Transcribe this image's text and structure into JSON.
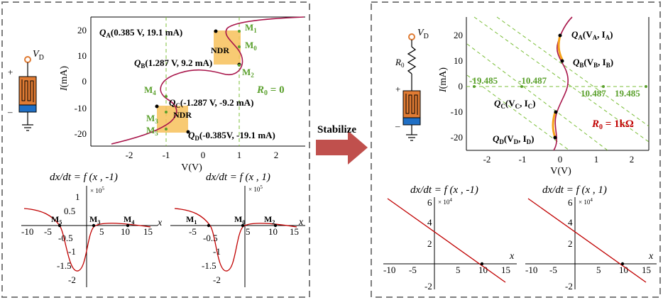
{
  "colors": {
    "curve": "#a8154a",
    "ndr_fill": "#f7c15a",
    "green": "#5aa02c",
    "red": "#c00000",
    "arrow": "#c0504d",
    "memristor_body": "#e07b33",
    "memristor_base": "#1f6fc5",
    "frame": "#7f7f7f"
  },
  "left_panel": {
    "circuit": {
      "vd_label": "V",
      "vd_sub": "D",
      "plus": "+",
      "minus": "–"
    },
    "iv_plot": {
      "ylabel_i": "I",
      "ylabel_unit": "(mA)",
      "xlabel": "V(V)",
      "x_ticks": [
        "-2",
        "-1",
        "0",
        "1",
        "2"
      ],
      "y_ticks": [
        "20",
        "10",
        "0",
        "-10",
        "-20"
      ],
      "points": {
        "qa": "Q",
        "qa_sub": "A",
        "qa_val": "(0.385 V, 19.1 mA)",
        "qb": "Q",
        "qb_sub": "B",
        "qb_val": "(1.287 V, 9.2 mA)",
        "qc": "Q",
        "qc_sub": "C",
        "qc_val": "(-1.287 V, -9.2 mA)",
        "qd": "Q",
        "qd_sub": "D",
        "qd_val": "(-0.385V, -19.1 mA)"
      },
      "m_labels": {
        "m0": "M",
        "m0_sub": "0",
        "m1": "M",
        "m1_sub": "1",
        "m2": "M",
        "m2_sub": "2",
        "m3": "M",
        "m3_sub": "3",
        "m4": "M",
        "m4_sub": "4",
        "m5": "M",
        "m5_sub": "5"
      },
      "ndr": "NDR",
      "r0_label": "R",
      "r0_sub": "0",
      "r0_val": " = 0"
    },
    "flow_plots": {
      "title_left": "dx/dt = f (x , -1)",
      "title_right": "dx/dt = f (x , 1)",
      "scale": "× 10",
      "scale_exp": "5",
      "y_ticks": [
        "1",
        "0.5",
        "-0.5",
        "-1",
        "-1.5",
        "-2"
      ],
      "x_ticks_left": [
        "-10",
        "-5",
        "5",
        "10",
        "15"
      ],
      "x_ticks_right": [
        "-5",
        "5",
        "10",
        "15"
      ],
      "x_axis": "x",
      "left_points": [
        "M5",
        "M3",
        "M4"
      ],
      "right_points": [
        "M1",
        "M0",
        "M2"
      ]
    }
  },
  "arrow": {
    "label": "Stabilize"
  },
  "right_panel": {
    "circuit": {
      "vd_label": "V",
      "vd_sub": "D",
      "r0_label": "R",
      "r0_sub": "0",
      "plus": "+",
      "minus": "–"
    },
    "iv_plot": {
      "ylabel_i": "I",
      "ylabel_unit": "(mA)",
      "xlabel": "V(V)",
      "x_ticks": [
        "-2",
        "-1",
        "0",
        "1",
        "2"
      ],
      "y_ticks": [
        "20",
        "10",
        "0",
        "-10",
        "-20"
      ],
      "load_lines": [
        "-19.485",
        "-10.487",
        "10.487",
        "19.485"
      ],
      "points": {
        "qa": "Q",
        "qa_sub": "A",
        "qa_v": "(V",
        "qa_vsub": "A",
        "qa_i": ", I",
        "qa_isub": "A",
        "qa_end": ")",
        "qb": "Q",
        "qb_sub": "B",
        "qb_v": "(V",
        "qb_vsub": "B",
        "qb_i": ", I",
        "qb_isub": "B",
        "qb_end": ")",
        "qc": "Q",
        "qc_sub": "C",
        "qc_v": "(V",
        "qc_vsub": "C",
        "qc_i": ", I",
        "qc_isub": "C",
        "qc_end": ")",
        "qd": "Q",
        "qd_sub": "D",
        "qd_v": "(V",
        "qd_vsub": "D",
        "qd_i": ", I",
        "qd_isub": "D",
        "qd_end": ")"
      },
      "r0_label": "R",
      "r0_sub": "0",
      "r0_val": " = 1kΩ"
    },
    "flow_plots": {
      "title_left": "dx/dt = f (x , -1)",
      "title_right": "dx/dt = f (x , 1)",
      "scale": "× 10",
      "scale_exp": "4",
      "y_ticks": [
        "6",
        "4",
        "2",
        "-2"
      ],
      "x_ticks": [
        "-10",
        "-5",
        "5",
        "10",
        "15"
      ],
      "x_axis": "x"
    }
  }
}
